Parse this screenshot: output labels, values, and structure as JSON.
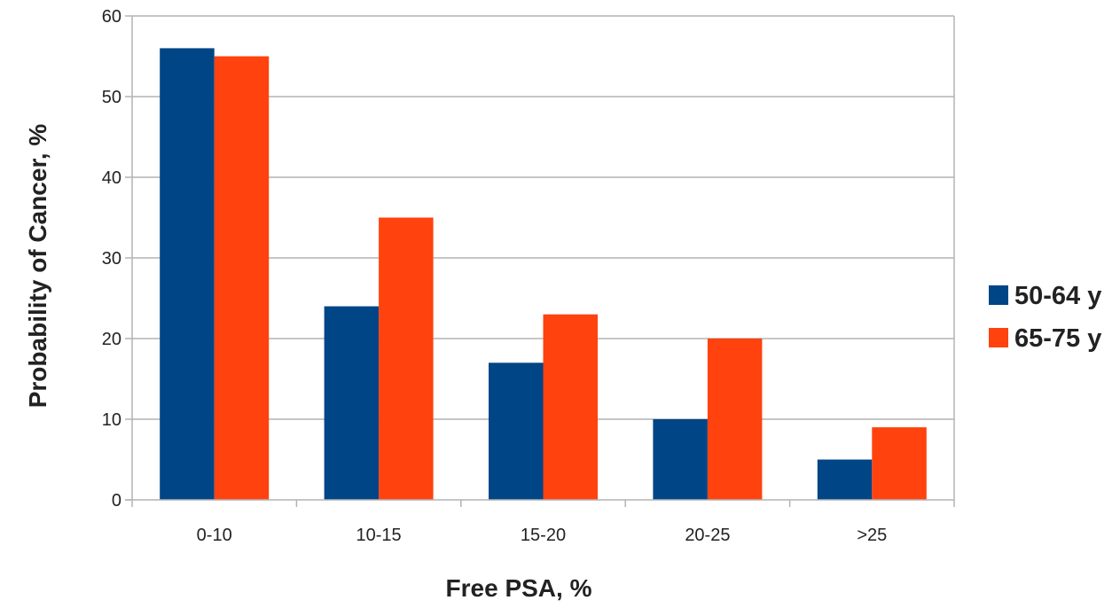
{
  "chart_data": {
    "type": "bar",
    "categories": [
      "0-10",
      "10-15",
      "15-20",
      "20-25",
      ">25"
    ],
    "series": [
      {
        "name": "50-64 y",
        "color": "#004586",
        "values": [
          56,
          24,
          17,
          10,
          5
        ]
      },
      {
        "name": "65-75 y",
        "color": "#ff420e",
        "values": [
          55,
          35,
          23,
          20,
          9
        ]
      }
    ],
    "xlabel": "Free PSA, %",
    "ylabel": "Probability of Cancer, %",
    "ylim": [
      0,
      60
    ],
    "yticks": [
      "0",
      "10",
      "20",
      "30",
      "40",
      "50",
      "60"
    ],
    "grid": true,
    "legend_position": "right"
  }
}
